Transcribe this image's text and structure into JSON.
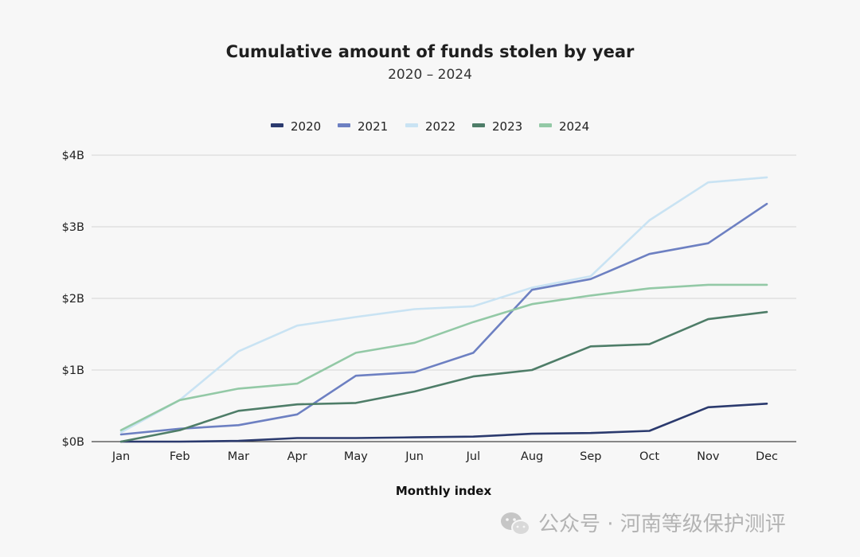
{
  "chart_data": {
    "type": "line",
    "title": "Cumulative amount of funds stolen by year",
    "subtitle": "2020 – 2024",
    "xlabel": "Monthly index",
    "ylabel": "",
    "categories": [
      "Jan",
      "Feb",
      "Mar",
      "Apr",
      "May",
      "Jun",
      "Jul",
      "Aug",
      "Sep",
      "Oct",
      "Nov",
      "Dec"
    ],
    "ylim": [
      0,
      4
    ],
    "yticks": [
      0,
      1,
      2,
      3,
      4
    ],
    "ytick_labels": [
      "$0B",
      "$1B",
      "$2B",
      "$3B",
      "$4B"
    ],
    "grid": "horizontal",
    "legend_position": "top-center",
    "series": [
      {
        "name": "2020",
        "color": "#2b3a6e",
        "values": [
          0.0,
          0.0,
          0.01,
          0.05,
          0.05,
          0.06,
          0.07,
          0.11,
          0.12,
          0.15,
          0.48,
          0.53
        ]
      },
      {
        "name": "2021",
        "color": "#6d80c2",
        "values": [
          0.1,
          0.18,
          0.23,
          0.38,
          0.92,
          0.97,
          1.24,
          2.12,
          2.27,
          2.62,
          2.77,
          3.32
        ]
      },
      {
        "name": "2022",
        "color": "#c9e3f3",
        "values": [
          0.13,
          0.58,
          1.26,
          1.62,
          1.74,
          1.85,
          1.89,
          2.15,
          2.31,
          3.09,
          3.62,
          3.69
        ]
      },
      {
        "name": "2023",
        "color": "#4e7d68",
        "values": [
          0.0,
          0.16,
          0.43,
          0.52,
          0.54,
          0.7,
          0.91,
          1.0,
          1.33,
          1.36,
          1.71,
          1.81
        ]
      },
      {
        "name": "2024",
        "color": "#93c9a6",
        "values": [
          0.16,
          0.58,
          0.74,
          0.81,
          1.24,
          1.38,
          1.67,
          1.92,
          2.04,
          2.14,
          2.19,
          2.19
        ]
      }
    ]
  },
  "watermark": {
    "text": "公众号 · 河南等级保护测评",
    "icon": "wechat-icon"
  },
  "colors": {
    "background": "#f7f7f7",
    "grid": "#d4d4d4",
    "axis": "#444444"
  }
}
